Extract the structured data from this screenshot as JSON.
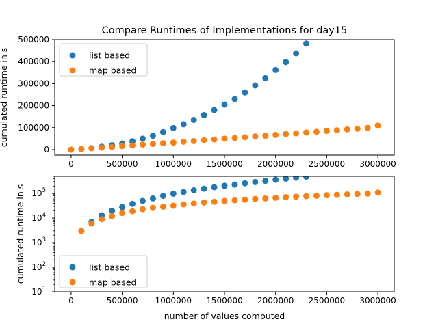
{
  "chart_data": [
    {
      "type": "scatter",
      "title": "Compare Runtimes of Implementations for day15",
      "xlabel": "",
      "ylabel": "cumulated runtime in s",
      "scale": "linear",
      "xlim": [
        -160000,
        3160000
      ],
      "ylim": [
        -25000,
        500000
      ],
      "xticks": [
        0,
        500000,
        1000000,
        1500000,
        2000000,
        2500000,
        3000000
      ],
      "yticks": [
        0,
        100000,
        200000,
        300000,
        400000,
        500000
      ],
      "legend_position": "upper-left",
      "series": [
        {
          "name": "list based",
          "color": "#1f77b4",
          "x": [
            0,
            100000,
            200000,
            300000,
            400000,
            500000,
            600000,
            700000,
            800000,
            900000,
            1000000,
            1100000,
            1200000,
            1300000,
            1400000,
            1500000,
            1600000,
            1700000,
            1800000,
            1900000,
            2000000,
            2100000,
            2200000,
            2300000
          ],
          "y": [
            0,
            3000,
            7000,
            13000,
            20000,
            28000,
            38000,
            50000,
            63000,
            80000,
            98000,
            115000,
            135000,
            157000,
            180000,
            205000,
            230000,
            260000,
            292000,
            325000,
            362000,
            398000,
            438000,
            482000
          ]
        },
        {
          "name": "map based",
          "color": "#ff7f0e",
          "x": [
            0,
            100000,
            200000,
            300000,
            400000,
            500000,
            600000,
            700000,
            800000,
            900000,
            1000000,
            1100000,
            1200000,
            1300000,
            1400000,
            1500000,
            1600000,
            1700000,
            1800000,
            1900000,
            2000000,
            2100000,
            2200000,
            2300000,
            2400000,
            2500000,
            2600000,
            2700000,
            2800000,
            2900000,
            3000000
          ],
          "y": [
            0,
            3000,
            6000,
            9000,
            12000,
            16000,
            19000,
            23000,
            26000,
            29000,
            32000,
            36000,
            39000,
            43000,
            46000,
            50000,
            53000,
            56000,
            60000,
            63000,
            67000,
            71000,
            74000,
            78000,
            81000,
            85000,
            88000,
            92000,
            95000,
            99000,
            109000
          ]
        }
      ]
    },
    {
      "type": "scatter",
      "title": "",
      "xlabel": "number of values computed",
      "ylabel": "cumulated runtime in s",
      "scale": "log",
      "xlim": [
        -160000,
        3160000
      ],
      "ylim": [
        10,
        500000
      ],
      "xticks": [
        0,
        500000,
        1000000,
        1500000,
        2000000,
        2500000,
        3000000
      ],
      "yticks": [
        10,
        100,
        1000,
        10000,
        100000
      ],
      "legend_position": "lower-left",
      "series": [
        {
          "name": "list based",
          "color": "#1f77b4",
          "x": [
            0,
            100000,
            200000,
            300000,
            400000,
            500000,
            600000,
            700000,
            800000,
            900000,
            1000000,
            1100000,
            1200000,
            1300000,
            1400000,
            1500000,
            1600000,
            1700000,
            1800000,
            1900000,
            2000000,
            2100000,
            2200000,
            2300000
          ],
          "y": [
            0,
            3000,
            7000,
            13000,
            20000,
            28000,
            38000,
            50000,
            63000,
            80000,
            98000,
            115000,
            135000,
            157000,
            180000,
            205000,
            230000,
            260000,
            292000,
            325000,
            362000,
            398000,
            438000,
            482000
          ]
        },
        {
          "name": "map based",
          "color": "#ff7f0e",
          "x": [
            0,
            100000,
            200000,
            300000,
            400000,
            500000,
            600000,
            700000,
            800000,
            900000,
            1000000,
            1100000,
            1200000,
            1300000,
            1400000,
            1500000,
            1600000,
            1700000,
            1800000,
            1900000,
            2000000,
            2100000,
            2200000,
            2300000,
            2400000,
            2500000,
            2600000,
            2700000,
            2800000,
            2900000,
            3000000
          ],
          "y": [
            0,
            3000,
            6000,
            9000,
            12000,
            16000,
            19000,
            23000,
            26000,
            29000,
            32000,
            36000,
            39000,
            43000,
            46000,
            50000,
            53000,
            56000,
            60000,
            63000,
            67000,
            71000,
            74000,
            78000,
            81000,
            85000,
            88000,
            92000,
            95000,
            99000,
            109000
          ]
        }
      ]
    }
  ]
}
